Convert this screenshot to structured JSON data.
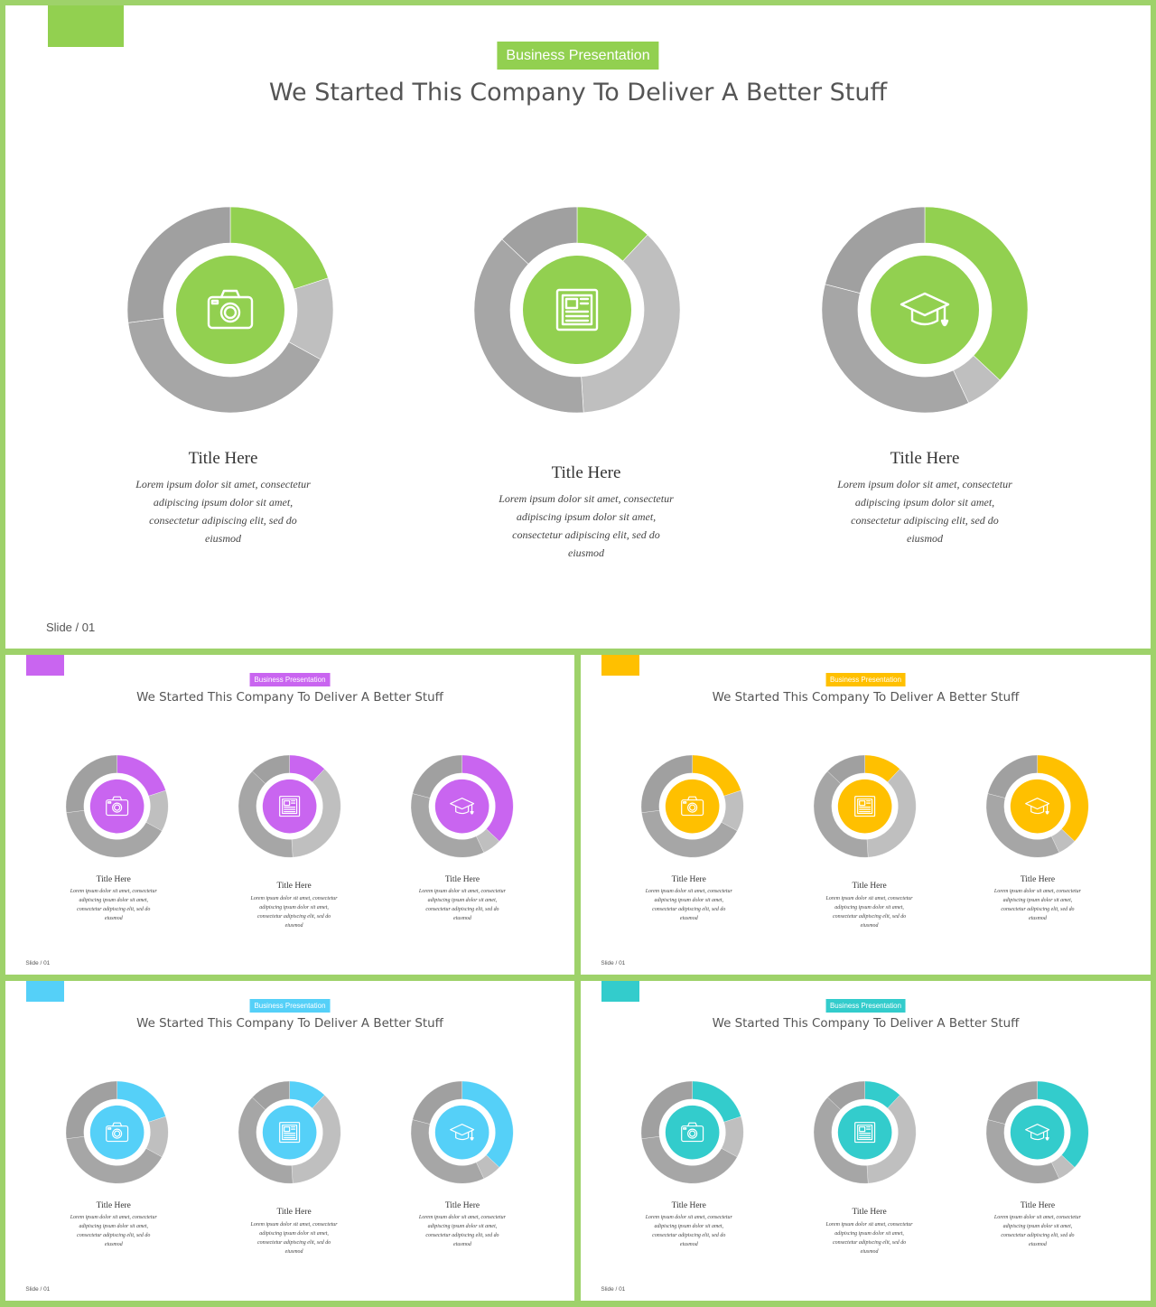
{
  "slides": [
    {
      "accent": "#92d050",
      "badge": "Business Presentation",
      "heading": "We Started This Company To Deliver A Better Stuff",
      "slide_number": "Slide / 01",
      "cards": [
        {
          "title": "Title Here",
          "body": "Lorem ipsum dolor sit amet, consectetur adipiscing ipsum dolor sit amet, consectetur adipiscing elit, sed do eiusmod",
          "icon": "camera-icon"
        },
        {
          "title": "Title Here",
          "body": "Lorem ipsum dolor sit amet, consectetur adipiscing ipsum dolor sit amet, consectetur adipiscing elit, sed do eiusmod",
          "icon": "newspaper-icon"
        },
        {
          "title": "Title Here",
          "body": "Lorem ipsum dolor sit amet, consectetur adipiscing ipsum dolor sit amet, consectetur adipiscing elit, sed do eiusmod",
          "icon": "graduation-cap-icon"
        }
      ]
    },
    {
      "accent": "#c965f0",
      "badge": "Business Presentation",
      "heading": "We Started This Company To Deliver A Better Stuff",
      "slide_number": "Slide / 01",
      "cards": [
        {
          "title": "Title Here",
          "body": "Lorem ipsum dolor sit amet, consectetur adipiscing ipsum dolor sit amet, consectetur adipiscing elit, sed do eiusmod",
          "icon": "camera-icon"
        },
        {
          "title": "Title Here",
          "body": "Lorem ipsum dolor sit amet, consectetur adipiscing ipsum dolor sit amet, consectetur adipiscing elit, sed do eiusmod",
          "icon": "newspaper-icon"
        },
        {
          "title": "Title Here",
          "body": "Lorem ipsum dolor sit amet, consectetur adipiscing ipsum dolor sit amet, consectetur adipiscing elit, sed do eiusmod",
          "icon": "graduation-cap-icon"
        }
      ]
    },
    {
      "accent": "#ffc000",
      "badge": "Business Presentation",
      "heading": "We Started This Company To Deliver A Better Stuff",
      "slide_number": "Slide / 01",
      "cards": [
        {
          "title": "Title Here",
          "body": "Lorem ipsum dolor sit amet, consectetur adipiscing ipsum dolor sit amet, consectetur adipiscing elit, sed do eiusmod",
          "icon": "camera-icon"
        },
        {
          "title": "Title Here",
          "body": "Lorem ipsum dolor sit amet, consectetur adipiscing ipsum dolor sit amet, consectetur adipiscing elit, sed do eiusmod",
          "icon": "newspaper-icon"
        },
        {
          "title": "Title Here",
          "body": "Lorem ipsum dolor sit amet, consectetur adipiscing ipsum dolor sit amet, consectetur adipiscing elit, sed do eiusmod",
          "icon": "graduation-cap-icon"
        }
      ]
    },
    {
      "accent": "#55d0f8",
      "badge": "Business Presentation",
      "heading": "We Started This Company To Deliver A Better Stuff",
      "slide_number": "Slide / 01",
      "cards": [
        {
          "title": "Title Here",
          "body": "Lorem ipsum dolor sit amet, consectetur adipiscing ipsum dolor sit amet, consectetur adipiscing elit, sed do eiusmod",
          "icon": "camera-icon"
        },
        {
          "title": "Title Here",
          "body": "Lorem ipsum dolor sit amet, consectetur adipiscing ipsum dolor sit amet, consectetur adipiscing elit, sed do eiusmod",
          "icon": "newspaper-icon"
        },
        {
          "title": "Title Here",
          "body": "Lorem ipsum dolor sit amet, consectetur adipiscing ipsum dolor sit amet, consectetur adipiscing elit, sed do eiusmod",
          "icon": "graduation-cap-icon"
        }
      ]
    },
    {
      "accent": "#33cccc",
      "badge": "Business Presentation",
      "heading": "We Started This Company To Deliver A Better Stuff",
      "slide_number": "Slide / 01",
      "cards": [
        {
          "title": "Title Here",
          "body": "Lorem ipsum dolor sit amet, consectetur adipiscing ipsum dolor sit amet, consectetur adipiscing elit, sed do eiusmod",
          "icon": "camera-icon"
        },
        {
          "title": "Title Here",
          "body": "Lorem ipsum dolor sit amet, consectetur adipiscing ipsum dolor sit amet, consectetur adipiscing elit, sed do eiusmod",
          "icon": "newspaper-icon"
        },
        {
          "title": "Title Here",
          "body": "Lorem ipsum dolor sit amet, consectetur adipiscing ipsum dolor sit amet, consectetur adipiscing elit, sed do eiusmod",
          "icon": "graduation-cap-icon"
        }
      ]
    }
  ],
  "chart_data": [
    {
      "type": "pie",
      "donut": true,
      "values": [
        20,
        13,
        40,
        27
      ],
      "accent_slice": 0
    },
    {
      "type": "pie",
      "donut": true,
      "values": [
        12,
        37,
        38,
        13
      ],
      "accent_slice": 0
    },
    {
      "type": "pie",
      "donut": true,
      "values": [
        37,
        6,
        36,
        21
      ],
      "accent_slice": 0
    }
  ],
  "colors": {
    "frame": "#9ed26a",
    "gray_light": "#bfbfbf",
    "gray_mid": "#a6a6a6",
    "gray_dark": "#a0a0a0"
  }
}
